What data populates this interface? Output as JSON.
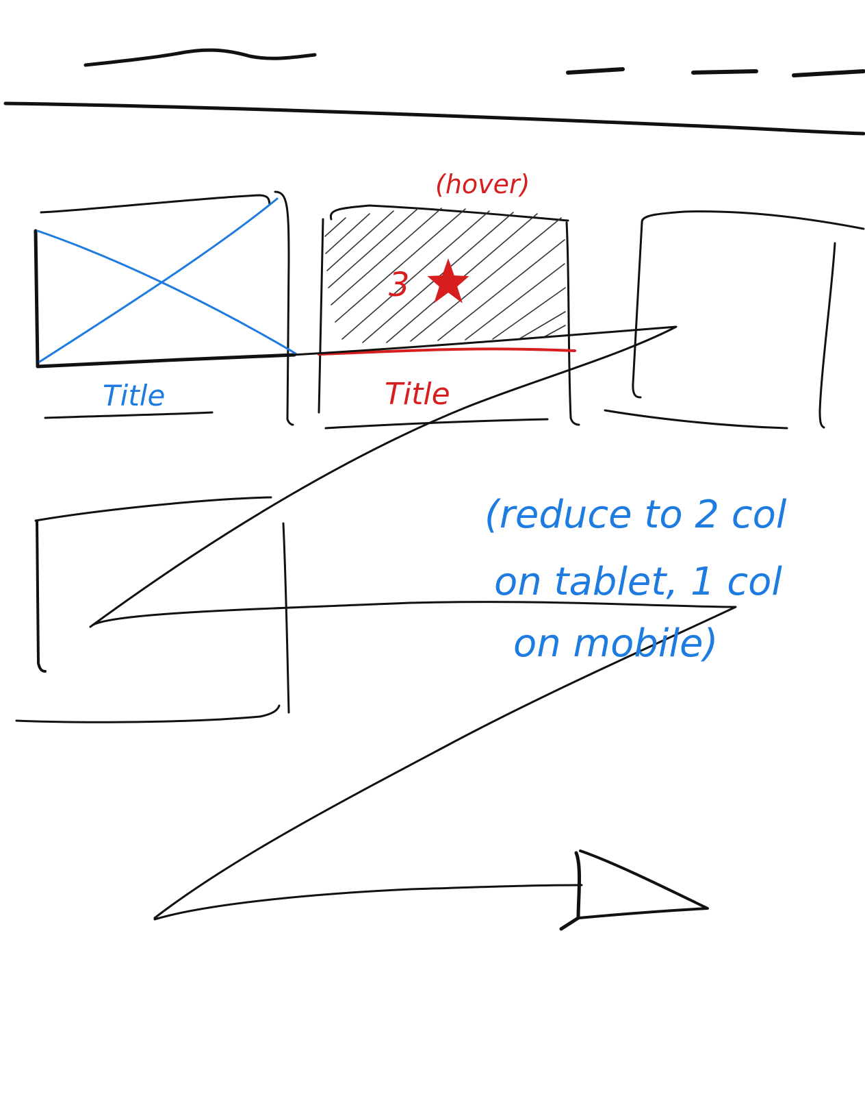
{
  "colors": {
    "ink": "#111111",
    "blue": "#1e7be0",
    "red": "#d61e1e"
  },
  "header": {
    "logo_kind": "scribble-line",
    "nav_item_count": 3
  },
  "cards": [
    {
      "state": "default",
      "image": "placeholder-x",
      "title": "Title"
    },
    {
      "state": "hover",
      "hover_note": "(hover)",
      "rating": "3",
      "rating_icon": "star-icon",
      "title": "Title"
    },
    {
      "state": "empty"
    },
    {
      "state": "empty"
    }
  ],
  "annotations": {
    "responsive_line1": "(reduce to 2 col",
    "responsive_line2": "on tablet, 1 col",
    "responsive_line3": "on mobile)"
  }
}
